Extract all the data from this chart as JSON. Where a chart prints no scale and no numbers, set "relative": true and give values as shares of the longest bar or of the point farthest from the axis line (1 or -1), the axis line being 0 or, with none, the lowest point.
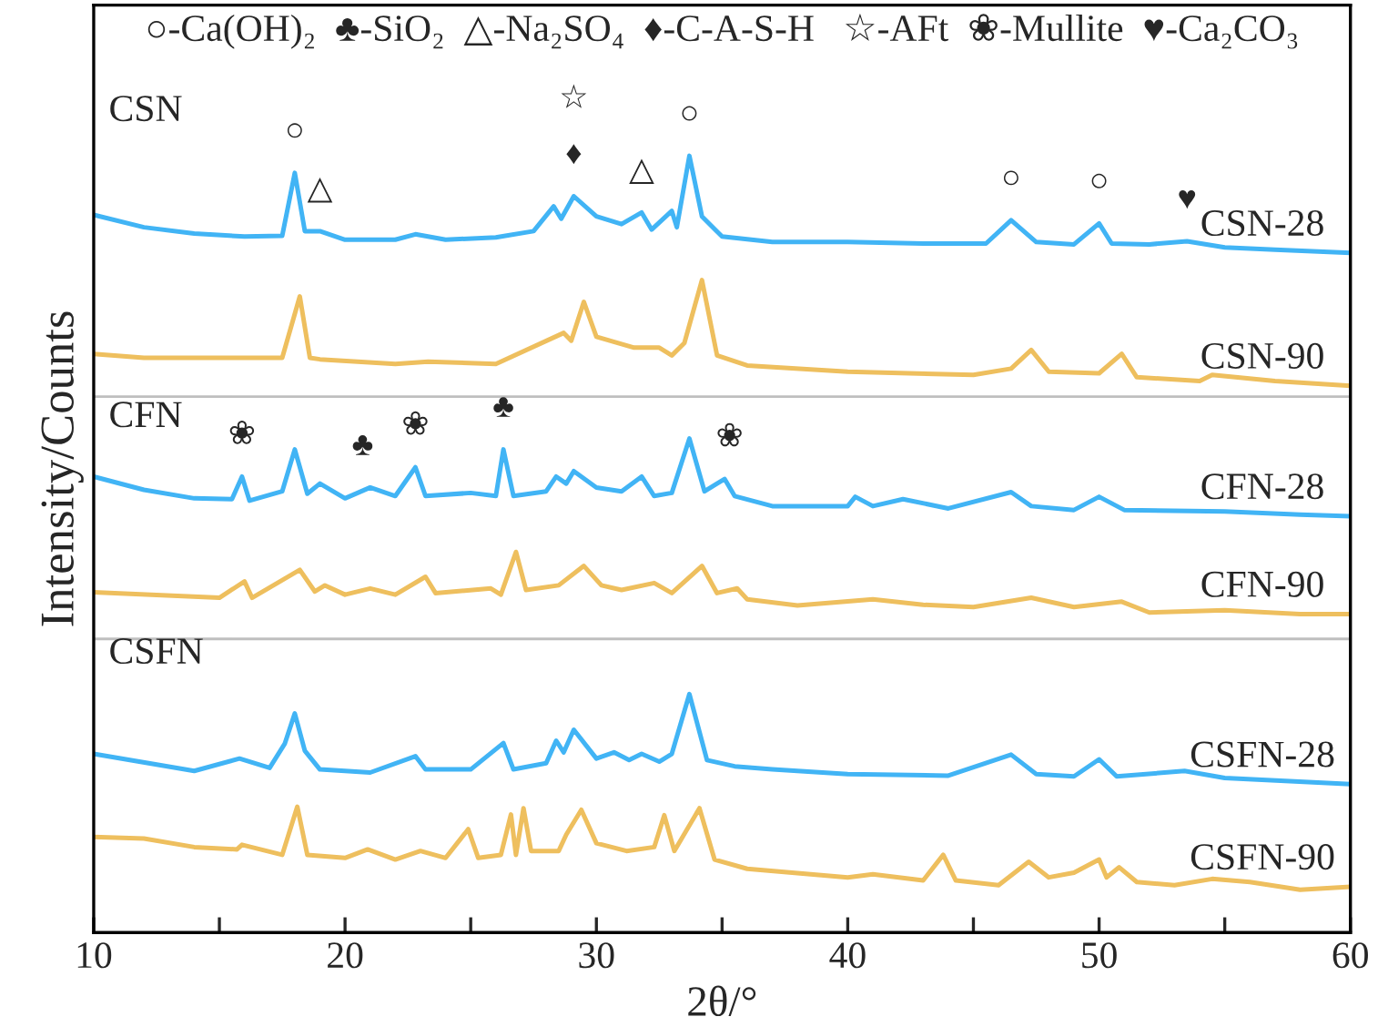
{
  "chart_data": {
    "type": "line",
    "relative": true,
    "xlabel": "2θ/°",
    "ylabel": "Intensity/Counts",
    "xlim": [
      10,
      60
    ],
    "xticks": [
      10,
      {
        "value": 15,
        "label": null
      },
      20,
      {
        "value": 25,
        "label": null
      },
      30,
      {
        "value": 35,
        "label": null
      },
      40,
      {
        "value": 45,
        "label": null
      },
      50,
      {
        "value": 55,
        "label": null
      },
      60
    ],
    "grid": false,
    "legend": false,
    "tick_labels": "x",
    "ref_lines": [
      {
        "axis": "y",
        "value": 0.69,
        "color": "#bfbfbf"
      },
      {
        "axis": "y",
        "value": 0.378,
        "color": "#bfbfbf"
      }
    ],
    "series": [
      {
        "name": "CSN-28",
        "color": "#41b4f5",
        "x": [
          10,
          12,
          14,
          16,
          17.5,
          18,
          18.4,
          19,
          20,
          22,
          22.8,
          24,
          26,
          27.5,
          28.3,
          28.6,
          29.1,
          30,
          31,
          31.8,
          32.2,
          33,
          33.2,
          33.7,
          34.2,
          35,
          37,
          40,
          43,
          45.5,
          46.5,
          47.5,
          49,
          50,
          50.5,
          52,
          53.5,
          55,
          57,
          60
        ],
        "values": [
          0.924,
          0.908,
          0.9,
          0.896,
          0.897,
          0.978,
          0.903,
          0.903,
          0.892,
          0.892,
          0.899,
          0.892,
          0.895,
          0.903,
          0.935,
          0.919,
          0.948,
          0.922,
          0.912,
          0.927,
          0.905,
          0.929,
          0.908,
          1.0,
          0.922,
          0.896,
          0.889,
          0.889,
          0.887,
          0.887,
          0.917,
          0.889,
          0.886,
          0.913,
          0.887,
          0.886,
          0.89,
          0.882,
          0.879,
          0.875
        ]
      },
      {
        "name": "CSN-90",
        "color": "#eebf5e",
        "x": [
          10,
          12,
          15,
          17.5,
          18.2,
          18.6,
          19,
          22,
          23.3,
          26,
          28.7,
          29,
          29.5,
          30,
          31.5,
          32.5,
          33,
          33.5,
          34.2,
          34.8,
          36,
          40,
          45,
          46.5,
          47.3,
          48,
          50,
          50.9,
          51.5,
          54,
          54.5,
          57,
          60
        ],
        "values": [
          0.745,
          0.74,
          0.74,
          0.74,
          0.819,
          0.74,
          0.738,
          0.732,
          0.735,
          0.732,
          0.772,
          0.762,
          0.812,
          0.767,
          0.753,
          0.753,
          0.743,
          0.759,
          0.84,
          0.743,
          0.73,
          0.722,
          0.718,
          0.726,
          0.75,
          0.722,
          0.72,
          0.745,
          0.715,
          0.71,
          0.718,
          0.71,
          0.704
        ]
      },
      {
        "name": "CFN-28",
        "color": "#41b4f5",
        "x": [
          10,
          12,
          14,
          15.5,
          15.9,
          16.2,
          17.5,
          18,
          18.5,
          19,
          20,
          21,
          22,
          22.8,
          23.2,
          25,
          26,
          26.3,
          26.7,
          28,
          28.4,
          28.8,
          29.1,
          30,
          31,
          31.8,
          32.3,
          33,
          33.7,
          34.3,
          34.8,
          35.1,
          35.5,
          37,
          40,
          40.3,
          41,
          42.2,
          44,
          46.5,
          47.3,
          49,
          50,
          51,
          55,
          58,
          60
        ],
        "values": [
          0.587,
          0.57,
          0.559,
          0.558,
          0.587,
          0.556,
          0.568,
          0.622,
          0.565,
          0.578,
          0.559,
          0.573,
          0.562,
          0.599,
          0.562,
          0.566,
          0.562,
          0.622,
          0.562,
          0.568,
          0.587,
          0.578,
          0.594,
          0.573,
          0.568,
          0.587,
          0.562,
          0.566,
          0.636,
          0.568,
          0.578,
          0.584,
          0.562,
          0.549,
          0.549,
          0.561,
          0.549,
          0.558,
          0.546,
          0.567,
          0.549,
          0.544,
          0.561,
          0.544,
          0.542,
          0.538,
          0.536
        ]
      },
      {
        "name": "CFN-90",
        "color": "#eebf5e",
        "x": [
          10,
          15,
          16,
          16.3,
          18.2,
          18.8,
          19.2,
          20,
          21,
          22,
          23.2,
          23.6,
          25.8,
          26.2,
          26.8,
          27.2,
          28.5,
          29.5,
          30.2,
          31,
          32.3,
          33,
          34.2,
          34.8,
          35.6,
          36,
          38,
          41,
          43,
          45,
          47.3,
          49,
          50.9,
          52,
          55,
          58,
          60
        ],
        "values": [
          0.438,
          0.431,
          0.452,
          0.431,
          0.467,
          0.439,
          0.447,
          0.435,
          0.443,
          0.435,
          0.458,
          0.437,
          0.443,
          0.435,
          0.49,
          0.441,
          0.447,
          0.472,
          0.447,
          0.441,
          0.45,
          0.437,
          0.472,
          0.437,
          0.443,
          0.429,
          0.421,
          0.429,
          0.422,
          0.419,
          0.431,
          0.419,
          0.426,
          0.412,
          0.415,
          0.41,
          0.41
        ]
      },
      {
        "name": "CSFN-28",
        "color": "#41b4f5",
        "x": [
          10,
          14,
          15.8,
          17,
          17.6,
          18,
          18.4,
          19,
          21,
          22.8,
          23.2,
          25,
          26.3,
          26.7,
          28,
          28.4,
          28.7,
          29.1,
          30,
          30.7,
          31.3,
          31.8,
          32.5,
          33,
          33.7,
          34.4,
          35.5,
          37,
          40,
          44,
          46.5,
          47.5,
          49,
          50,
          50.7,
          53.4,
          55,
          60
        ],
        "values": [
          0.23,
          0.208,
          0.224,
          0.212,
          0.243,
          0.282,
          0.234,
          0.21,
          0.206,
          0.227,
          0.21,
          0.21,
          0.244,
          0.21,
          0.218,
          0.247,
          0.232,
          0.261,
          0.224,
          0.232,
          0.222,
          0.23,
          0.22,
          0.23,
          0.307,
          0.222,
          0.214,
          0.21,
          0.204,
          0.202,
          0.229,
          0.204,
          0.201,
          0.223,
          0.201,
          0.208,
          0.199,
          0.191
        ]
      },
      {
        "name": "CSFN-90",
        "color": "#eebf5e",
        "x": [
          10,
          12,
          14,
          15.7,
          15.9,
          17.5,
          18.1,
          18.5,
          20,
          20.9,
          22,
          23,
          24,
          24.9,
          25.3,
          26.2,
          26.6,
          26.8,
          27.1,
          27.4,
          28.5,
          28.8,
          29.4,
          30,
          31.2,
          32.3,
          32.7,
          33.1,
          34.1,
          34.7,
          36,
          40,
          41,
          43,
          43.8,
          44.3,
          46,
          47.2,
          48,
          49,
          50,
          50.3,
          50.8,
          51.5,
          53,
          54.5,
          56,
          58,
          60
        ],
        "values": [
          0.123,
          0.121,
          0.11,
          0.107,
          0.113,
          0.1,
          0.162,
          0.1,
          0.096,
          0.107,
          0.094,
          0.105,
          0.096,
          0.133,
          0.096,
          0.1,
          0.152,
          0.1,
          0.16,
          0.105,
          0.105,
          0.126,
          0.158,
          0.115,
          0.105,
          0.11,
          0.151,
          0.105,
          0.16,
          0.094,
          0.082,
          0.071,
          0.075,
          0.067,
          0.1,
          0.067,
          0.061,
          0.091,
          0.071,
          0.077,
          0.094,
          0.071,
          0.084,
          0.065,
          0.061,
          0.069,
          0.065,
          0.055,
          0.059
        ]
      }
    ],
    "annotations": [
      "○-Ca(OH)₂  ♣-SiO₂  △-Na₂SO₄  ♦-C-A-S-H   ☆-AFt  ❀-Mullite  ♥-Ca₂CO₃",
      "CSN",
      "CFN",
      "CSFN",
      {
        "text": "○",
        "x": 18,
        "y": 0.978
      },
      {
        "text": "△",
        "x": 19,
        "y": 0.903
      },
      {
        "text": "♦",
        "x": 29.1,
        "y": 0.948
      },
      {
        "text": "☆",
        "x": 29.1,
        "y": 0.948
      },
      {
        "text": "△",
        "x": 31.8,
        "y": 0.927
      },
      {
        "text": "○",
        "x": 33.7,
        "y": 1.0
      },
      {
        "text": "○",
        "x": 46.5,
        "y": 0.917
      },
      {
        "text": "○",
        "x": 50,
        "y": 0.913
      },
      {
        "text": "♥",
        "x": 53.5,
        "y": 0.89
      },
      {
        "text": "❀",
        "x": 15.9,
        "y": 0.587
      },
      {
        "text": "♣",
        "x": 20.7,
        "y": 0.573
      },
      {
        "text": "❀",
        "x": 22.8,
        "y": 0.599
      },
      {
        "text": "♣",
        "x": 26.3,
        "y": 0.622
      },
      {
        "text": "❀",
        "x": 35.3,
        "y": 0.584
      }
    ]
  }
}
